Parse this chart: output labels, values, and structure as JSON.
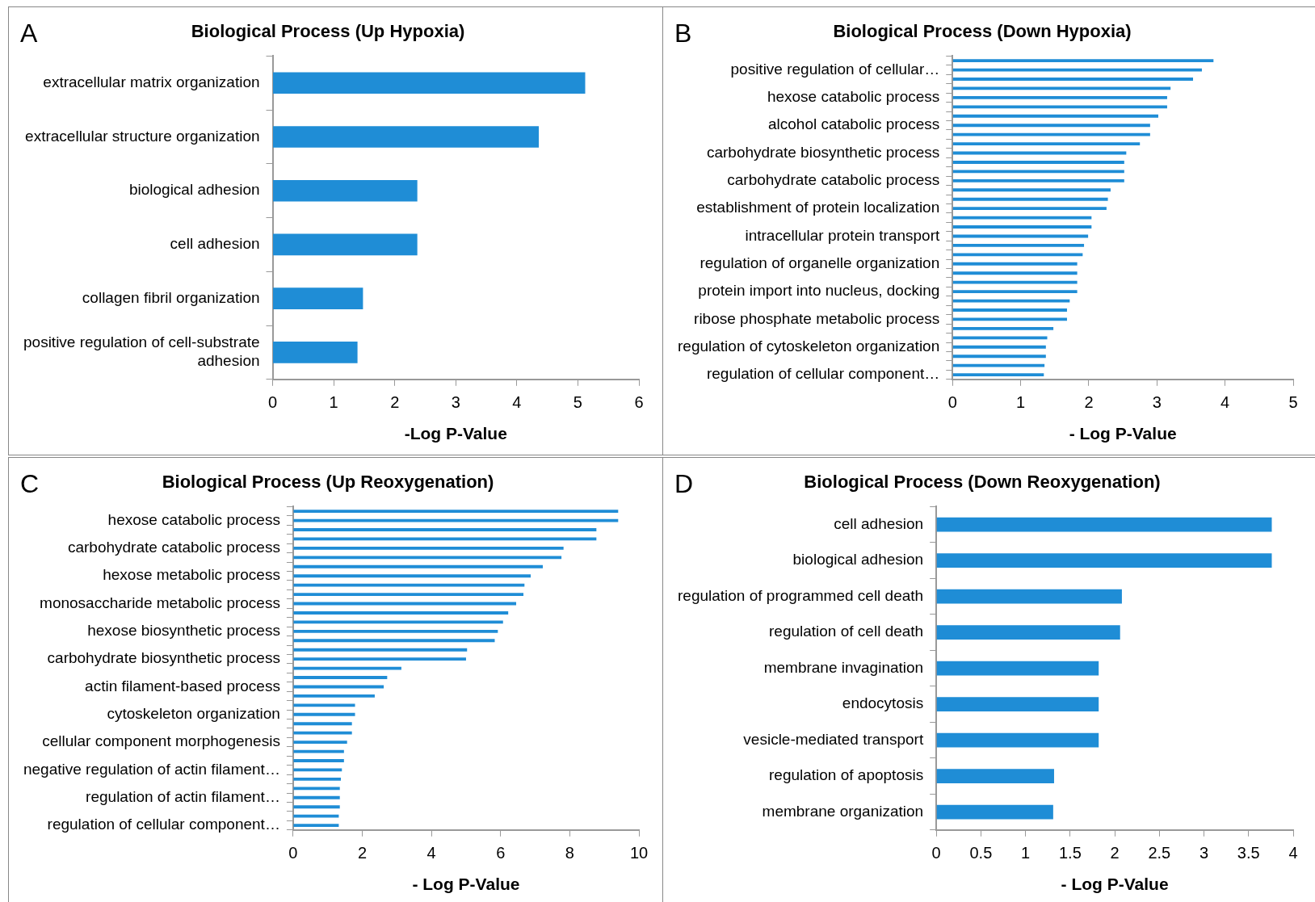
{
  "chart_data": [
    {
      "type": "bar",
      "orientation": "horizontal",
      "title": "Biological Process (Up Hypoxia)",
      "xlabel": "-Log P-Value",
      "annotations": [
        "A"
      ],
      "color": "#1f8dd6",
      "categories": [
        "extracellular matrix organization",
        "extracellular structure organization",
        "biological adhesion",
        "cell adhesion",
        "collagen fibril organization",
        "positive regulation of cell-substrate adhesion"
      ],
      "values": [
        5.12,
        4.36,
        2.37,
        2.37,
        1.48,
        1.39
      ],
      "xlim": [
        0,
        6
      ],
      "xticks": [
        0,
        1,
        2,
        3,
        4,
        5,
        6
      ]
    },
    {
      "type": "bar",
      "orientation": "horizontal",
      "title": "Biological Process (Down Hypoxia)",
      "xlabel": "- Log P-Value",
      "annotations": [
        "B"
      ],
      "color": "#1f8dd6",
      "categories": [
        null,
        "positive regulation of cellular…",
        null,
        null,
        "hexose catabolic process",
        null,
        null,
        "alcohol catabolic process",
        null,
        null,
        "carbohydrate biosynthetic process",
        null,
        null,
        "carbohydrate catabolic process",
        null,
        null,
        "establishment of protein localization",
        null,
        null,
        "intracellular protein transport",
        null,
        null,
        "regulation of organelle organization",
        null,
        null,
        "protein import into nucleus, docking",
        null,
        null,
        "ribose phosphate metabolic process",
        null,
        null,
        "regulation of cytoskeleton organization",
        null,
        null,
        "regulation of cellular component…"
      ],
      "values": [
        3.83,
        3.66,
        3.53,
        3.2,
        3.15,
        3.15,
        3.02,
        2.9,
        2.9,
        2.75,
        2.55,
        2.52,
        2.52,
        2.52,
        2.32,
        2.28,
        2.26,
        2.04,
        2.04,
        1.99,
        1.93,
        1.91,
        1.83,
        1.83,
        1.83,
        1.83,
        1.72,
        1.68,
        1.68,
        1.48,
        1.39,
        1.37,
        1.37,
        1.35,
        1.34
      ],
      "xlim": [
        0,
        5
      ],
      "xticks": [
        0,
        1,
        2,
        3,
        4,
        5
      ]
    },
    {
      "type": "bar",
      "orientation": "horizontal",
      "title": "Biological Process (Up Reoxygenation)",
      "xlabel": "- Log P-Value",
      "annotations": [
        "C"
      ],
      "color": "#1f8dd6",
      "categories": [
        null,
        "hexose catabolic process",
        null,
        null,
        "carbohydrate catabolic process",
        null,
        null,
        "hexose metabolic process",
        null,
        null,
        "monosaccharide metabolic process",
        null,
        null,
        "hexose biosynthetic process",
        null,
        null,
        "carbohydrate biosynthetic process",
        null,
        null,
        "actin filament-based process",
        null,
        null,
        "cytoskeleton organization",
        null,
        null,
        "cellular component morphogenesis",
        null,
        null,
        "negative regulation of actin filament…",
        null,
        null,
        "regulation of actin filament…",
        null,
        null,
        "regulation of cellular component…"
      ],
      "values": [
        9.4,
        9.4,
        8.77,
        8.77,
        7.82,
        7.76,
        7.22,
        6.87,
        6.69,
        6.66,
        6.45,
        6.22,
        6.07,
        5.92,
        5.83,
        5.03,
        5.0,
        3.13,
        2.72,
        2.62,
        2.36,
        1.79,
        1.79,
        1.7,
        1.7,
        1.56,
        1.47,
        1.47,
        1.41,
        1.38,
        1.35,
        1.35,
        1.35,
        1.32,
        1.32
      ],
      "xlim": [
        0,
        10
      ],
      "xticks": [
        0,
        2,
        4,
        6,
        8,
        10
      ]
    },
    {
      "type": "bar",
      "orientation": "horizontal",
      "title": "Biological Process (Down Reoxygenation)",
      "xlabel": "- Log P-Value",
      "annotations": [
        "D"
      ],
      "color": "#1f8dd6",
      "categories": [
        "cell adhesion",
        "biological adhesion",
        "regulation of programmed cell death",
        "regulation of cell death",
        "membrane invagination",
        "endocytosis",
        "vesicle-mediated transport",
        "regulation of apoptosis",
        "membrane organization"
      ],
      "values": [
        3.76,
        3.76,
        2.08,
        2.06,
        1.82,
        1.82,
        1.82,
        1.32,
        1.31
      ],
      "xlim": [
        0,
        4
      ],
      "xticks": [
        0,
        0.5,
        1,
        1.5,
        2,
        2.5,
        3,
        3.5,
        4
      ]
    }
  ]
}
